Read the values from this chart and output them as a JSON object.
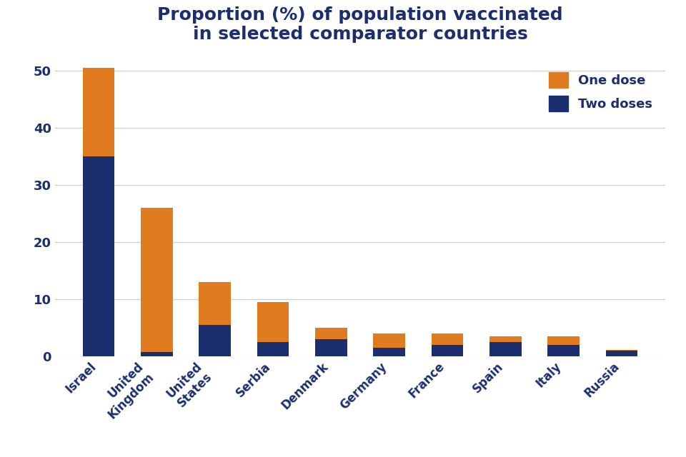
{
  "categories": [
    "Israel",
    "United\nKingdom",
    "United\nStates",
    "Serbia",
    "Denmark",
    "Germany",
    "France",
    "Spain",
    "Italy",
    "Russia"
  ],
  "two_doses": [
    35.0,
    0.8,
    5.5,
    2.5,
    3.0,
    1.5,
    2.0,
    2.5,
    2.0,
    1.0
  ],
  "one_dose": [
    15.5,
    25.2,
    7.5,
    7.0,
    2.0,
    2.5,
    2.0,
    1.0,
    1.5,
    0.2
  ],
  "color_one_dose": "#E07B20",
  "color_two_doses": "#1B2F6E",
  "title_line1": "Proportion (%) of population vaccinated",
  "title_line2": "in selected comparator countries",
  "legend_one_dose": "One dose",
  "legend_two_doses": "Two doses",
  "ylim": [
    0,
    52
  ],
  "yticks": [
    0,
    10,
    20,
    30,
    40,
    50
  ],
  "background_color": "#FFFFFF",
  "title_color": "#1B2F6E",
  "title_fontsize": 18,
  "tick_label_color": "#1B2F6E",
  "tick_label_fontsize": 13,
  "xtick_label_fontsize": 12,
  "grid_color": "#CCCCCC",
  "bar_width": 0.55,
  "legend_fontsize": 13
}
